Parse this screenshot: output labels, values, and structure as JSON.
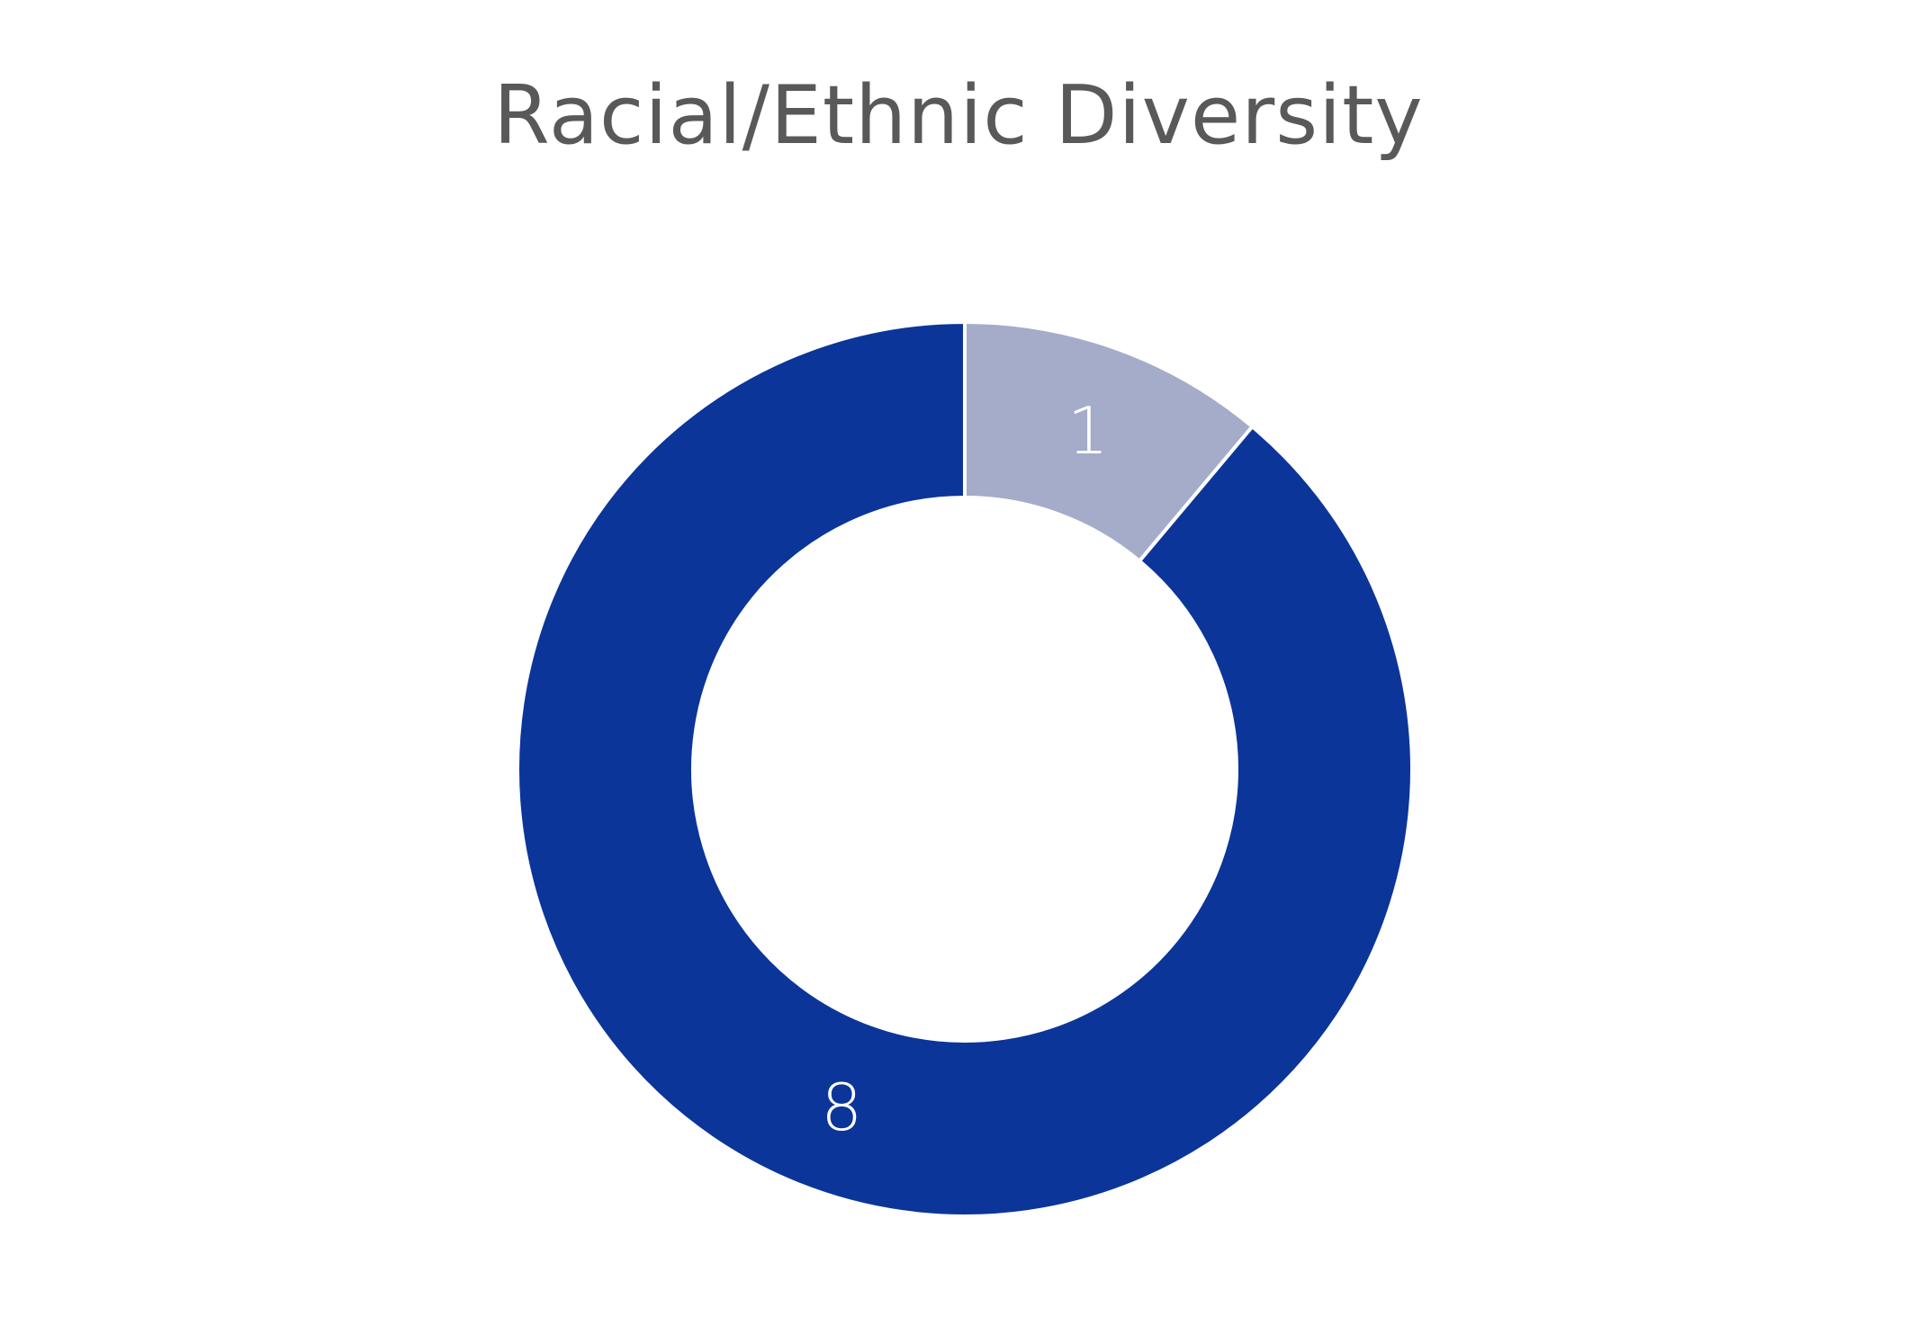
{
  "chart_data": {
    "type": "donut",
    "title": "Racial/Ethnic Diversity",
    "slices": [
      {
        "label": "1",
        "value": 1,
        "color": "#A5ACC9"
      },
      {
        "label": "8",
        "value": 8,
        "color": "#0B3599"
      }
    ],
    "start_angle_deg": 0,
    "direction": "clockwise",
    "slice_border_color": "#ffffff",
    "label_color": "#ffffff"
  }
}
